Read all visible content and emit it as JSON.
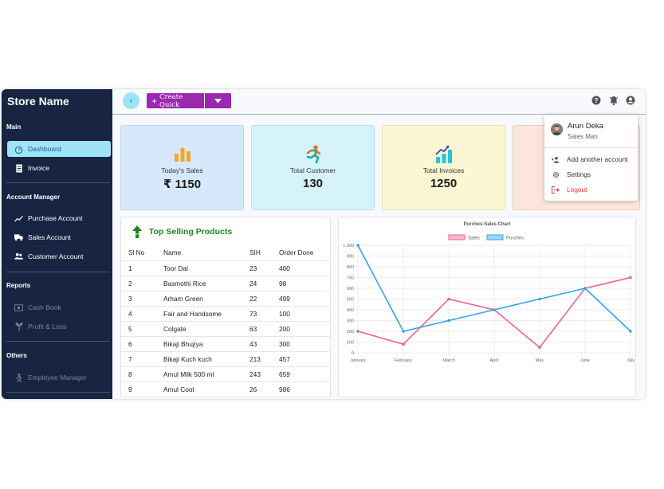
{
  "sidebar": {
    "store_name": "Store Name",
    "sections": {
      "main": "Main",
      "account_manager": "Account Manager",
      "reports": "Reports",
      "others": "Others"
    },
    "items": {
      "dashboard": "Dashboard",
      "invoice": "Invoice",
      "purchase_account": "Purchase Account",
      "sales_account": "Sales Account",
      "customer_account": "Customer Account",
      "cash_book": "Cash Book",
      "profit_loss": "Profit & Loss",
      "employee_manager": "Employee Manager"
    }
  },
  "topbar": {
    "create_quick_label": "Create Quick",
    "icons": [
      "help-icon",
      "bell-icon",
      "account-circle-icon"
    ]
  },
  "cards": [
    {
      "label": "Today's Sales",
      "value": "₹ 1150",
      "icon": "bar-chart-icon",
      "color": "#d6e9fc"
    },
    {
      "label": "Total Customer",
      "value": "130",
      "icon": "running-person-icon",
      "color": "#d6f3fc"
    },
    {
      "label": "Total Invoices",
      "value": "1250",
      "icon": "trend-chart-icon",
      "color": "#fcf6d4"
    },
    {
      "label": "",
      "value": "",
      "icon": "",
      "color": "#fce6dc"
    }
  ],
  "top_selling": {
    "title": "Top Selling Products",
    "headers": [
      "Sl No",
      "Name",
      "SIH",
      "Order Done"
    ],
    "rows": [
      [
        "1",
        "Toor Dal",
        "23",
        "400"
      ],
      [
        "2",
        "Basmothi Rice",
        "24",
        "98"
      ],
      [
        "3",
        "Arham Green",
        "22",
        "499"
      ],
      [
        "4",
        "Fair and Handsome",
        "73",
        "100"
      ],
      [
        "5",
        "Colgate",
        "63",
        "200"
      ],
      [
        "6",
        "Bikaji Bhujiya",
        "43",
        "300"
      ],
      [
        "7",
        "Bikaji Kuch kuch",
        "213",
        "457"
      ],
      [
        "8",
        "Amul Milk 500 ml",
        "243",
        "659"
      ],
      [
        "9",
        "Amul Cool",
        "26",
        "986"
      ]
    ]
  },
  "chart_data": {
    "type": "line",
    "title": "Purches-Sales Chart",
    "categories": [
      "January",
      "February",
      "March",
      "April",
      "May",
      "June",
      "July"
    ],
    "series": [
      {
        "name": "Sales",
        "color": "#f06292",
        "values": [
          200,
          80,
          500,
          400,
          50,
          600,
          700
        ]
      },
      {
        "name": "Purches",
        "color": "#36a2eb",
        "values": [
          1000,
          200,
          300,
          400,
          500,
          600,
          200
        ]
      }
    ],
    "yticks": [
      "0",
      "100",
      "200",
      "300",
      "400",
      "500",
      "600",
      "700",
      "800",
      "900",
      "1,000"
    ],
    "ylim": [
      0,
      1000
    ],
    "legend": "top",
    "grid": true
  },
  "user_menu": {
    "name": "Arun Deka",
    "role": "Sales Man",
    "items": {
      "add_account": "Add another account",
      "settings": "Settings",
      "logout": "Logout"
    }
  }
}
